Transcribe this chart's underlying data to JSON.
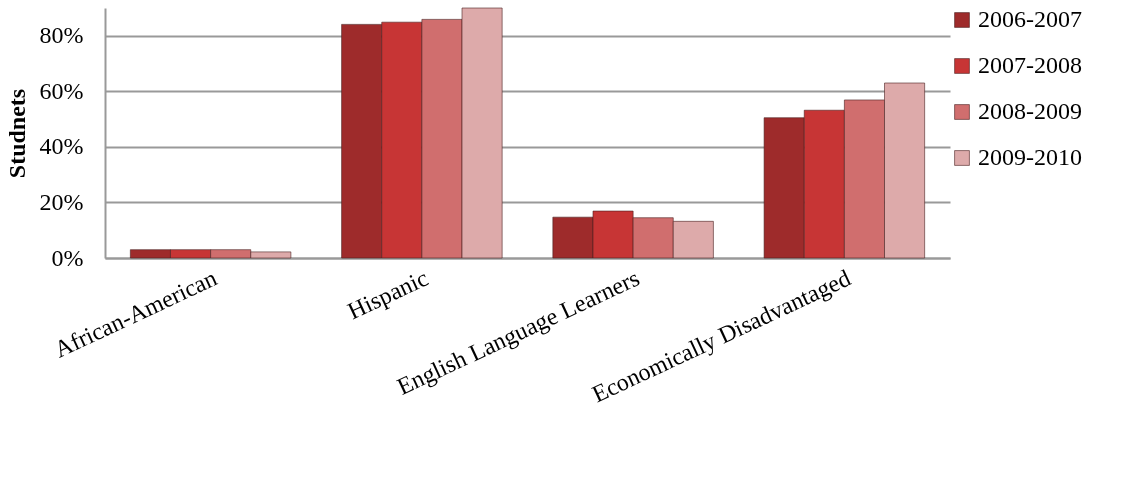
{
  "chart_data": {
    "type": "bar",
    "ylabel": "Studnets",
    "categories": [
      "African-American",
      "Hispanic",
      "English Language Learners",
      "Economically Disadvantaged"
    ],
    "series": [
      {
        "name": "2006-2007",
        "color": "#9e2b2b",
        "values": [
          3.0,
          84.1,
          14.7,
          50.5
        ]
      },
      {
        "name": "2007-2008",
        "color": "#c73535",
        "values": [
          3.0,
          84.9,
          16.9,
          53.2
        ]
      },
      {
        "name": "2008-2009",
        "color": "#d06e6e",
        "values": [
          3.0,
          85.9,
          14.5,
          56.9
        ]
      },
      {
        "name": "2009-2010",
        "color": "#ddaaaa",
        "values": [
          2.2,
          90,
          13.2,
          63.0
        ]
      }
    ],
    "ylim": [
      0,
      90
    ],
    "yticks": [
      {
        "value": 0,
        "label": "0%"
      },
      {
        "value": 20,
        "label": "20%"
      },
      {
        "value": 40,
        "label": "40%"
      },
      {
        "value": 60,
        "label": "60%"
      },
      {
        "value": 80,
        "label": "80%"
      }
    ],
    "grid": "y",
    "legend": "right"
  }
}
